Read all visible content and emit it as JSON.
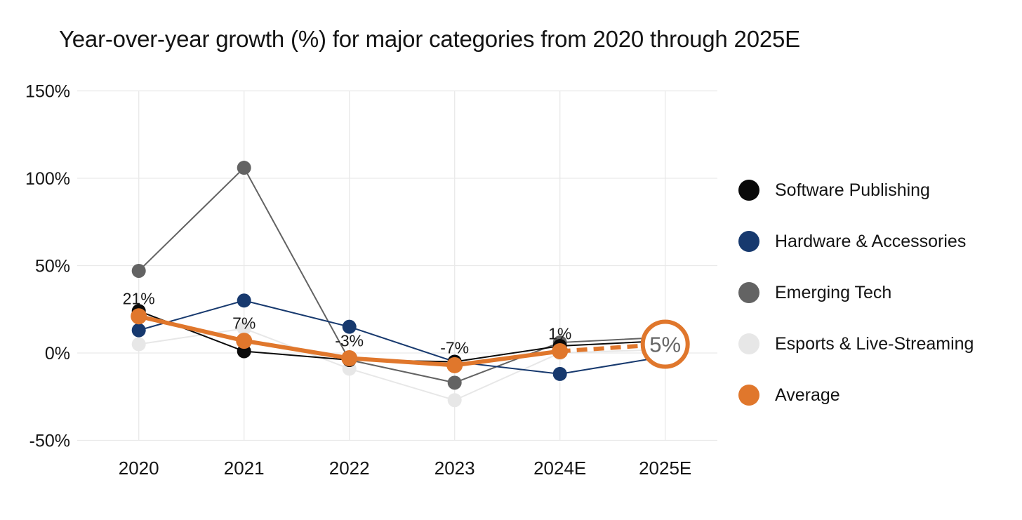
{
  "chart_data": {
    "type": "line",
    "title": "Year-over-year growth (%) for major categories from 2020 through 2025E",
    "x_categories": [
      "2020",
      "2021",
      "2022",
      "2023",
      "2024E",
      "2025E"
    ],
    "y_axis": {
      "tick_labels": [
        "150%",
        "100%",
        "50%",
        "0%",
        "-50%"
      ],
      "tick_values": [
        150,
        100,
        50,
        0,
        -50
      ],
      "ylim": [
        -50,
        150
      ]
    },
    "grid": true,
    "legend_position": "right",
    "series": [
      {
        "name": "Software Publishing",
        "color": "#0a0a0a",
        "values": [
          24,
          1,
          -4,
          -5,
          4,
          7
        ]
      },
      {
        "name": "Hardware & Accessories",
        "color": "#17396e",
        "values": [
          13,
          30,
          15,
          -5,
          -12,
          -2
        ]
      },
      {
        "name": "Emerging Tech",
        "color": "#636363",
        "values": [
          47,
          106,
          -4,
          -17,
          6,
          9
        ]
      },
      {
        "name": "Esports & Live-Streaming",
        "color": "#e7e7e7",
        "values": [
          5,
          14,
          -9,
          -27,
          0,
          2
        ]
      },
      {
        "name": "Average",
        "color": "#e0772c",
        "values": [
          21,
          7,
          -3,
          -7,
          1,
          5
        ],
        "emphasized": true,
        "dashed_from_index": 4,
        "point_labels": [
          "21%",
          "7%",
          "-3%",
          "-7%",
          "1%",
          "5%"
        ],
        "end_annotation": {
          "text": "5%",
          "style": "circled",
          "ring_color": "#e0772c",
          "text_color": "#666666"
        }
      }
    ]
  }
}
